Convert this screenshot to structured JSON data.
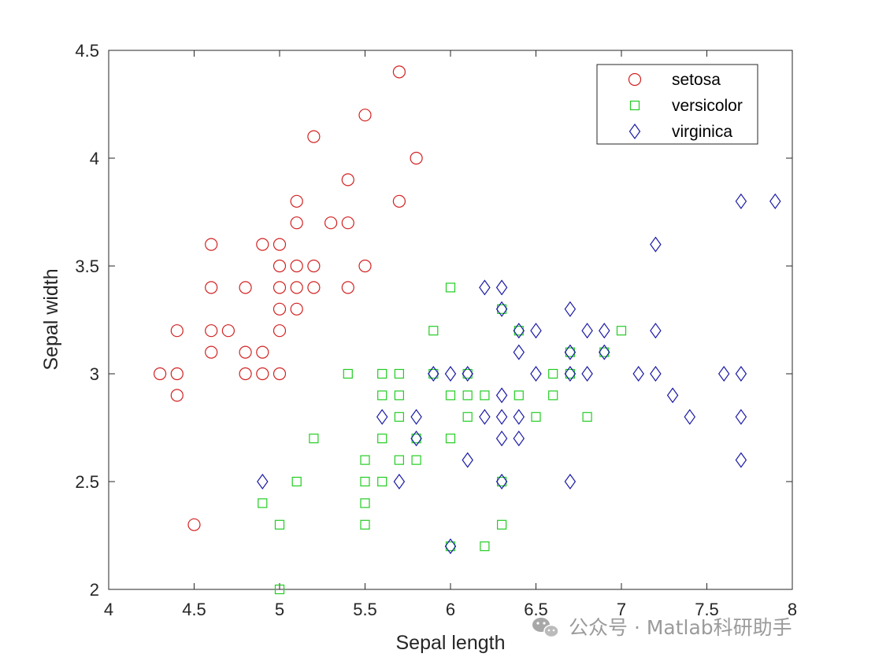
{
  "chart_data": {
    "type": "scatter",
    "xlabel": "Sepal length",
    "ylabel": "Sepal width",
    "xlim": [
      4,
      8
    ],
    "ylim": [
      2,
      4.5
    ],
    "xticks": [
      "4",
      "4.5",
      "5",
      "5.5",
      "6",
      "6.5",
      "7",
      "7.5",
      "8"
    ],
    "yticks": [
      "2",
      "2.5",
      "3",
      "3.5",
      "4",
      "4.5"
    ],
    "grid": false,
    "legend_position": "top-right",
    "series": [
      {
        "name": "setosa",
        "marker": "circle",
        "color": "#d32020",
        "points": [
          [
            5.7,
            4.4
          ],
          [
            5.5,
            4.2
          ],
          [
            5.2,
            4.1
          ],
          [
            5.8,
            4.0
          ],
          [
            5.4,
            3.9
          ],
          [
            5.1,
            3.8
          ],
          [
            5.7,
            3.8
          ],
          [
            5.1,
            3.7
          ],
          [
            5.3,
            3.7
          ],
          [
            5.4,
            3.7
          ],
          [
            4.6,
            3.6
          ],
          [
            4.9,
            3.6
          ],
          [
            5.0,
            3.6
          ],
          [
            5.0,
            3.5
          ],
          [
            5.1,
            3.5
          ],
          [
            5.2,
            3.5
          ],
          [
            5.5,
            3.5
          ],
          [
            4.6,
            3.4
          ],
          [
            4.8,
            3.4
          ],
          [
            5.0,
            3.4
          ],
          [
            5.1,
            3.4
          ],
          [
            5.2,
            3.4
          ],
          [
            5.4,
            3.4
          ],
          [
            5.0,
            3.3
          ],
          [
            5.1,
            3.3
          ],
          [
            4.4,
            3.2
          ],
          [
            4.6,
            3.2
          ],
          [
            4.7,
            3.2
          ],
          [
            5.0,
            3.2
          ],
          [
            4.6,
            3.1
          ],
          [
            4.8,
            3.1
          ],
          [
            4.9,
            3.1
          ],
          [
            4.3,
            3.0
          ],
          [
            4.4,
            3.0
          ],
          [
            4.8,
            3.0
          ],
          [
            4.9,
            3.0
          ],
          [
            5.0,
            3.0
          ],
          [
            4.4,
            2.9
          ],
          [
            4.5,
            2.3
          ]
        ]
      },
      {
        "name": "versicolor",
        "marker": "square",
        "color": "#22cc22",
        "points": [
          [
            6.0,
            3.4
          ],
          [
            6.3,
            3.3
          ],
          [
            5.9,
            3.2
          ],
          [
            6.4,
            3.2
          ],
          [
            7.0,
            3.2
          ],
          [
            6.7,
            3.1
          ],
          [
            6.9,
            3.1
          ],
          [
            5.4,
            3.0
          ],
          [
            5.6,
            3.0
          ],
          [
            5.7,
            3.0
          ],
          [
            5.9,
            3.0
          ],
          [
            6.1,
            3.0
          ],
          [
            6.6,
            3.0
          ],
          [
            6.7,
            3.0
          ],
          [
            5.6,
            2.9
          ],
          [
            5.7,
            2.9
          ],
          [
            6.0,
            2.9
          ],
          [
            6.1,
            2.9
          ],
          [
            6.2,
            2.9
          ],
          [
            6.4,
            2.9
          ],
          [
            6.6,
            2.9
          ],
          [
            5.7,
            2.8
          ],
          [
            6.1,
            2.8
          ],
          [
            6.5,
            2.8
          ],
          [
            6.8,
            2.8
          ],
          [
            5.2,
            2.7
          ],
          [
            5.6,
            2.7
          ],
          [
            5.8,
            2.7
          ],
          [
            6.0,
            2.7
          ],
          [
            5.5,
            2.6
          ],
          [
            5.7,
            2.6
          ],
          [
            5.8,
            2.6
          ],
          [
            5.1,
            2.5
          ],
          [
            5.5,
            2.5
          ],
          [
            5.6,
            2.5
          ],
          [
            6.3,
            2.5
          ],
          [
            4.9,
            2.4
          ],
          [
            5.5,
            2.4
          ],
          [
            5.0,
            2.3
          ],
          [
            5.5,
            2.3
          ],
          [
            6.3,
            2.3
          ],
          [
            6.0,
            2.2
          ],
          [
            6.2,
            2.2
          ],
          [
            5.0,
            2.0
          ]
        ]
      },
      {
        "name": "virginica",
        "marker": "diamond",
        "color": "#1a1aa6",
        "points": [
          [
            7.7,
            3.8
          ],
          [
            7.9,
            3.8
          ],
          [
            7.2,
            3.6
          ],
          [
            6.2,
            3.4
          ],
          [
            6.3,
            3.4
          ],
          [
            6.3,
            3.3
          ],
          [
            6.7,
            3.3
          ],
          [
            6.4,
            3.2
          ],
          [
            6.5,
            3.2
          ],
          [
            6.8,
            3.2
          ],
          [
            6.9,
            3.2
          ],
          [
            7.2,
            3.2
          ],
          [
            6.4,
            3.1
          ],
          [
            6.7,
            3.1
          ],
          [
            6.9,
            3.1
          ],
          [
            5.9,
            3.0
          ],
          [
            6.0,
            3.0
          ],
          [
            6.1,
            3.0
          ],
          [
            6.5,
            3.0
          ],
          [
            6.7,
            3.0
          ],
          [
            6.8,
            3.0
          ],
          [
            7.1,
            3.0
          ],
          [
            7.2,
            3.0
          ],
          [
            7.6,
            3.0
          ],
          [
            7.7,
            3.0
          ],
          [
            6.3,
            2.9
          ],
          [
            7.3,
            2.9
          ],
          [
            5.6,
            2.8
          ],
          [
            5.8,
            2.8
          ],
          [
            6.2,
            2.8
          ],
          [
            6.3,
            2.8
          ],
          [
            6.4,
            2.8
          ],
          [
            7.4,
            2.8
          ],
          [
            7.7,
            2.8
          ],
          [
            5.8,
            2.7
          ],
          [
            6.3,
            2.7
          ],
          [
            6.4,
            2.7
          ],
          [
            6.1,
            2.6
          ],
          [
            7.7,
            2.6
          ],
          [
            4.9,
            2.5
          ],
          [
            5.7,
            2.5
          ],
          [
            6.3,
            2.5
          ],
          [
            6.7,
            2.5
          ],
          [
            6.0,
            2.2
          ]
        ]
      }
    ]
  },
  "watermark": {
    "text": "公众号 · Matlab科研助手",
    "icon": "wechat-icon"
  }
}
